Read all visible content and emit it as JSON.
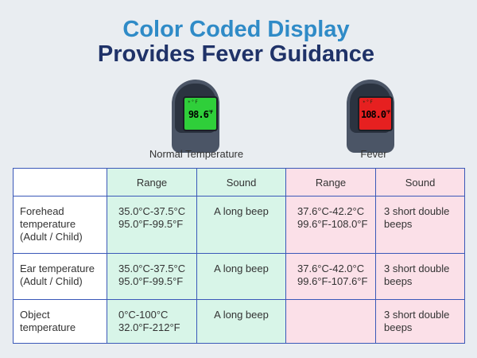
{
  "title": {
    "line1": "Color Coded Display",
    "line2": "Provides Fever Guidance"
  },
  "devices": [
    {
      "label": "Normal Temperature",
      "reading": "98.6",
      "unit": "°F",
      "indicator": "☀°F",
      "screen_color": "#2fcf3a"
    },
    {
      "label": "Fever",
      "reading": "108.0",
      "unit": "°F",
      "indicator": "☀°F",
      "screen_color": "#e62020"
    }
  ],
  "table": {
    "headers": [
      "",
      "Range",
      "Sound",
      "Range",
      "Sound"
    ],
    "rows": [
      {
        "label": [
          "Forehead",
          "temperature",
          " (Adult / Child)"
        ],
        "normal_range": [
          "35.0°C-37.5°C",
          "95.0°F-99.5°F"
        ],
        "normal_sound": "A long beep",
        "fever_range": [
          "37.6°C-42.2°C",
          "99.6°F-108.0°F"
        ],
        "fever_sound": [
          "3 short double",
          "beeps"
        ]
      },
      {
        "label": [
          "Ear temperature",
          "(Adult / Child)"
        ],
        "normal_range": [
          "35.0°C-37.5°C",
          "95.0°F-99.5°F"
        ],
        "normal_sound": "A long beep",
        "fever_range": [
          "37.6°C-42.0°C",
          "99.6°F-107.6°F"
        ],
        "fever_sound": [
          "3 short double",
          "beeps"
        ]
      },
      {
        "label": [
          "Object",
          "temperature"
        ],
        "normal_range": [
          "0°C-100°C",
          "32.0°F-212°F"
        ],
        "normal_sound": "A long beep",
        "fever_range": [
          "",
          ""
        ],
        "fever_sound": [
          "3 short double",
          "beeps"
        ]
      }
    ]
  },
  "colors": {
    "normal_cell": "#d8f5e8",
    "fever_cell": "#fbe0e8",
    "border": "#3a58b8",
    "title_blue": "#2f8bc7",
    "title_navy": "#1f3268"
  }
}
